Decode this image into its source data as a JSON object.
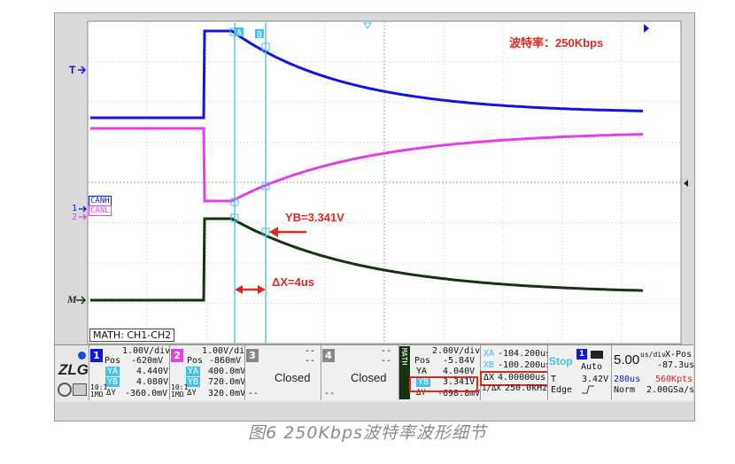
{
  "annotations": {
    "rate": "波特率：250Kbps",
    "yb": "YB=3.341V",
    "dx": "ΔX=4us"
  },
  "channel_markers": {
    "trigger": "T",
    "math": "M",
    "ch1_num": "1",
    "ch2_num": "2",
    "canh": "CANH",
    "canl": "CANL"
  },
  "math_label": "MATH: CH1-CH2",
  "panel": {
    "ch1": {
      "num": "1",
      "scale": "1.00V/div",
      "pos_label": "Pos",
      "pos": "-620mV",
      "ya_label": "YA",
      "ya": "4.440V",
      "yb_label": "YB",
      "yb": "4.080V",
      "dy": "-360.0mV",
      "dy_label": "ΔY",
      "bw": "10:1",
      "coupling": "1MΩ"
    },
    "ch2": {
      "num": "2",
      "scale": "1.00V/div",
      "pos_label": "Pos",
      "pos": "-860mV",
      "ya_label": "YA",
      "ya": "400.0mV",
      "yb_label": "YB",
      "yb": "720.0mV",
      "dy": "320.0mV",
      "dy_label": "ΔY",
      "bw": "10:1",
      "coupling": "1MΩ"
    },
    "ch3": {
      "num": "3",
      "top": "--",
      "mid": "--",
      "state": "Closed",
      "bot": "--"
    },
    "ch4": {
      "num": "4",
      "top": "--",
      "mid": "--",
      "state": "Closed",
      "bot": "--"
    },
    "math": {
      "tab": "MATH",
      "scale": "2.00V/div",
      "pos_label": "Pos",
      "pos": "-5.84V",
      "ya_label": "YA",
      "ya": "4.040V",
      "yb_label": "YB",
      "yb": "3.341V",
      "dy": "-698.8mV",
      "dy_label": "ΔY"
    },
    "cursor": {
      "xa_label": "XA",
      "xa": "-104.200us",
      "xb_label": "XB",
      "xb": "-100.200us",
      "dx_label": "ΔX",
      "dx": "4.00000us",
      "inv_label": "1/ΔX",
      "inv": "250.0kHz"
    },
    "run": {
      "state": "Stop",
      "mode": "Auto",
      "trig_label": "T",
      "trig_level": "3.42V",
      "edge_label": "Edge",
      "trig_ch": "1"
    },
    "timebase": {
      "scale": "5.00",
      "unit": "us/div",
      "xpos_label": "X-Pos",
      "xpos": "-87.3us",
      "window": "280us",
      "points": "560Kpts",
      "acq": "Norm",
      "rate": "2.00GSa/s"
    }
  },
  "caption": "图6 250Kbps波特率波形细节",
  "colors": {
    "canh": "#1414e0",
    "canl": "#e040e8",
    "math": "#14330f",
    "cursor": "#46c0e8",
    "annot": "#e0281e"
  }
}
